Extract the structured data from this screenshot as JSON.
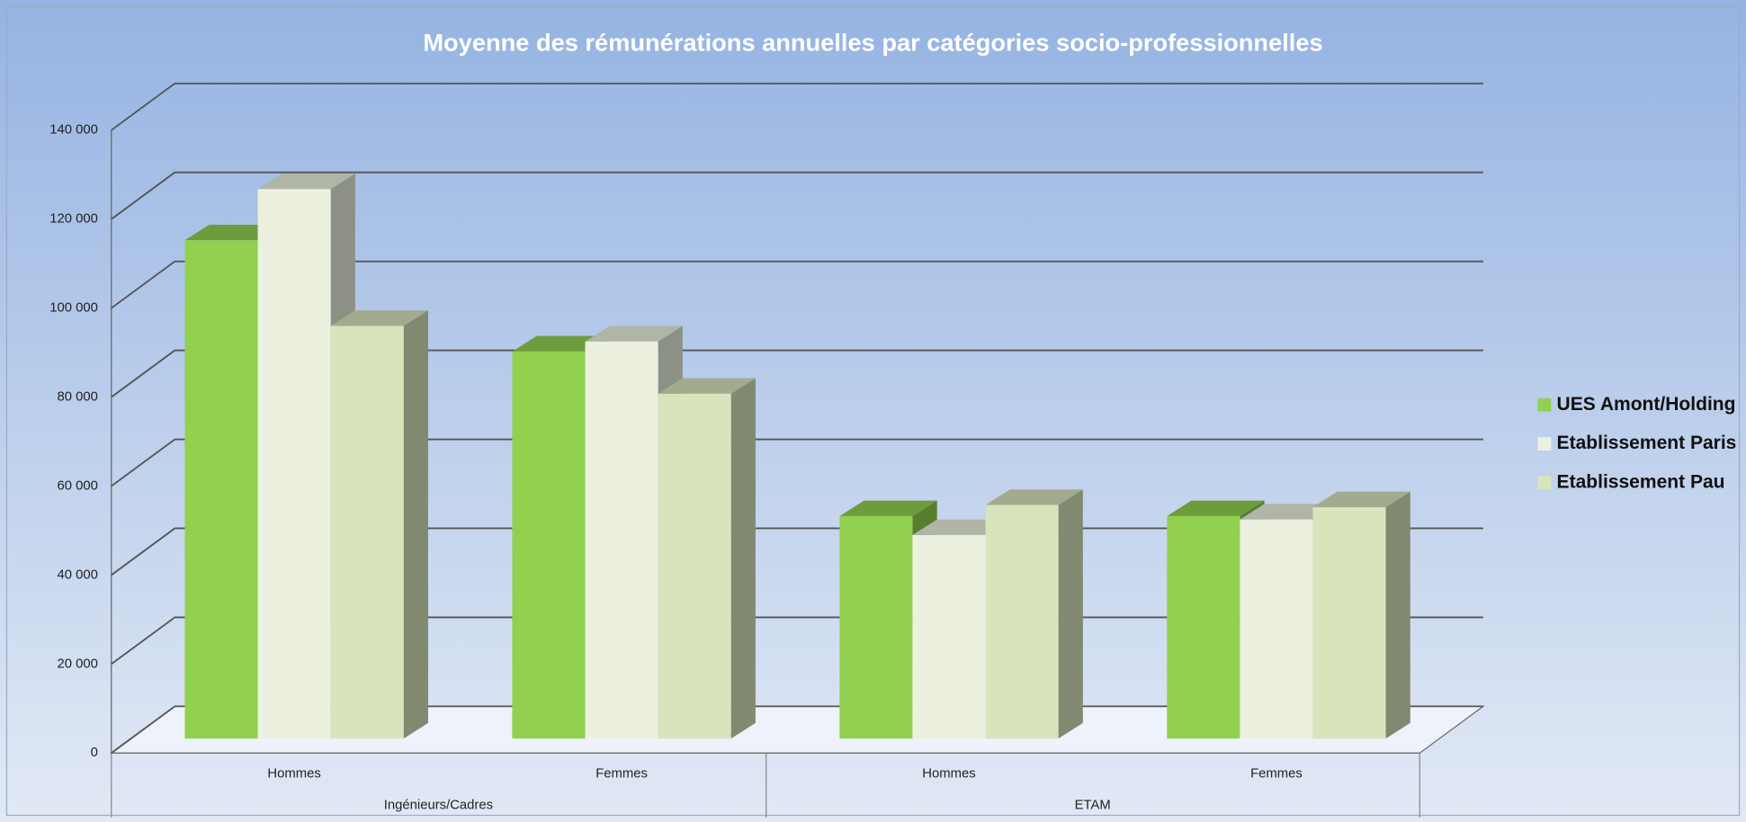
{
  "chart_data": {
    "type": "bar3d",
    "title": "Moyenne des rémunérations annuelles par catégories socio-professionnelles",
    "categories": [
      "Hommes",
      "Femmes",
      "Hommes",
      "Femmes"
    ],
    "groups": [
      "Ingénieurs/Cadres",
      "ETAM"
    ],
    "series": [
      {
        "name": "UES Amont/Holding",
        "color": "#92d050",
        "values": [
          112000,
          87000,
          50000,
          50000
        ]
      },
      {
        "name": "Etablissement Paris",
        "color": "#ebf1de",
        "values": [
          123500,
          89250,
          45750,
          49250
        ]
      },
      {
        "name": "Etablissement Pau",
        "color": "#d8e4bc",
        "values": [
          92750,
          77500,
          52500,
          52000
        ]
      }
    ],
    "ylim": [
      0,
      140000
    ],
    "yticks": [
      0,
      {
        "value": 20000,
        "label": "20 000"
      },
      {
        "value": 40000,
        "label": "40 000"
      },
      {
        "value": 60000,
        "label": "60 000"
      },
      {
        "value": 80000,
        "label": "80 000"
      },
      {
        "value": 100000,
        "label": "100 000"
      },
      {
        "value": 120000,
        "label": "120 000"
      },
      {
        "value": 140000,
        "label": "140 000"
      }
    ],
    "grid": true,
    "legend": "right"
  }
}
